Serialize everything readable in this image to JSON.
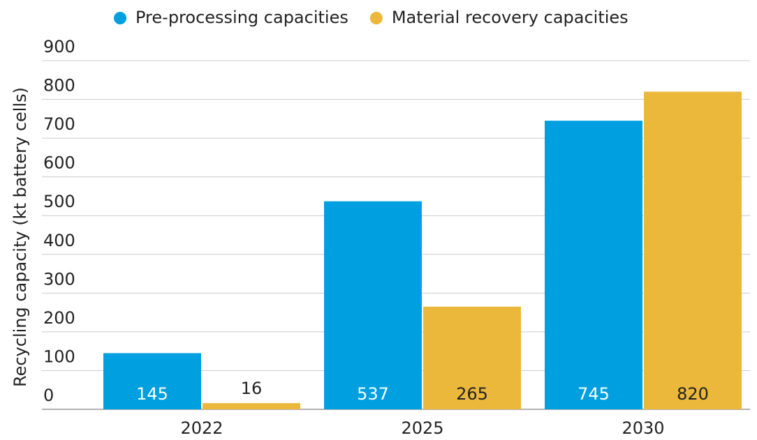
{
  "chart_data": {
    "type": "bar",
    "categories": [
      "2022",
      "2025",
      "2030"
    ],
    "series": [
      {
        "name": "Pre-processing capacities",
        "color": "#009fe0",
        "values": [
          145,
          537,
          745
        ]
      },
      {
        "name": "Material recovery capacities",
        "color": "#ebb83c",
        "values": [
          16,
          265,
          820
        ]
      }
    ],
    "y_label": "Recycling capacity (kt battery cells)",
    "ylim": [
      0,
      900
    ],
    "yticks": [
      0,
      100,
      200,
      300,
      400,
      500,
      600,
      700,
      800,
      900
    ],
    "grid": true,
    "legend": "top"
  }
}
